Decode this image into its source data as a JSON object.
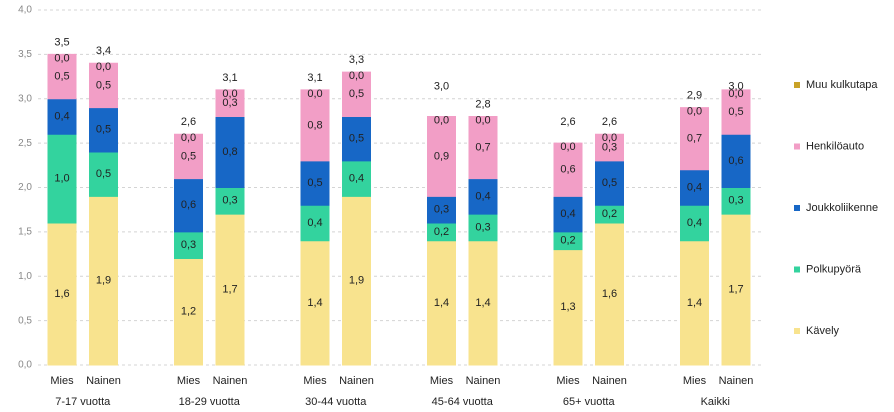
{
  "chart_data": {
    "type": "stacked-bar",
    "categories": [
      "Mies",
      "Nainen",
      "Mies",
      "Nainen",
      "Mies",
      "Nainen",
      "Mies",
      "Nainen",
      "Mies",
      "Nainen",
      "Mies",
      "Nainen"
    ],
    "groups": [
      "7-17 vuotta",
      "18-29 vuotta",
      "30-44 vuotta",
      "45-64 vuotta",
      "65+ vuotta",
      "Kaikki"
    ],
    "series": [
      {
        "name": "Kävely",
        "color": "#f8e38e",
        "values": [
          1.6,
          1.9,
          1.2,
          1.7,
          1.4,
          1.9,
          1.4,
          1.4,
          1.3,
          1.6,
          1.4,
          1.7
        ],
        "value_labels": [
          "1,6",
          "1,9",
          "1,2",
          "1,7",
          "1,4",
          "1,9",
          "1,4",
          "1,4",
          "1,3",
          "1,6",
          "1,4",
          "1,7"
        ]
      },
      {
        "name": "Polkupyörä",
        "color": "#33d39e",
        "values": [
          1.0,
          0.5,
          0.3,
          0.3,
          0.4,
          0.4,
          0.2,
          0.3,
          0.2,
          0.2,
          0.4,
          0.3
        ],
        "value_labels": [
          "1,0",
          "0,5",
          "0,3",
          "0,3",
          "0,4",
          "0,4",
          "0,2",
          "0,3",
          "0,2",
          "0,2",
          "0,4",
          "0,3"
        ]
      },
      {
        "name": "Joukkoliikenne",
        "color": "#1767c6",
        "values": [
          0.4,
          0.5,
          0.6,
          0.8,
          0.5,
          0.5,
          0.3,
          0.4,
          0.4,
          0.5,
          0.4,
          0.6
        ],
        "value_labels": [
          "0,4",
          "0,5",
          "0,6",
          "0,8",
          "0,5",
          "0,5",
          "0,3",
          "0,4",
          "0,4",
          "0,5",
          "0,4",
          "0,6"
        ]
      },
      {
        "name": "Henkilöauto",
        "color": "#f29ec6",
        "values": [
          0.5,
          0.5,
          0.5,
          0.3,
          0.8,
          0.5,
          0.9,
          0.7,
          0.6,
          0.3,
          0.7,
          0.5
        ],
        "value_labels": [
          "0,5",
          "0,5",
          "0,5",
          "0,3",
          "0,8",
          "0,5",
          "0,9",
          "0,7",
          "0,6",
          "0,3",
          "0,7",
          "0,5"
        ]
      },
      {
        "name": "Muu kulkutapa",
        "color": "#c9a227",
        "values": [
          0.0,
          0.0,
          0.0,
          0.0,
          0.0,
          0.0,
          0.0,
          0.0,
          0.0,
          0.0,
          0.0,
          0.0
        ],
        "value_labels": [
          "0,0",
          "0,0",
          "0,0",
          "0,0",
          "0,0",
          "0,0",
          "0,0",
          "0,0",
          "0,0",
          "0,0",
          "0,0",
          "0,0"
        ]
      }
    ],
    "totals": [
      3.5,
      3.4,
      2.6,
      3.1,
      3.1,
      3.3,
      3.0,
      2.8,
      2.6,
      2.6,
      2.9,
      3.0
    ],
    "total_labels": [
      "3,5",
      "3,4",
      "2,6",
      "3,1",
      "3,1",
      "3,3",
      "3,0",
      "2,8",
      "2,6",
      "2,6",
      "2,9",
      "3,0"
    ],
    "ylim": [
      0,
      4
    ],
    "yticks": [
      {
        "value": 0,
        "label": "0,0"
      },
      {
        "value": 0.5,
        "label": "0,5"
      },
      {
        "value": 1,
        "label": "1,0"
      },
      {
        "value": 1.5,
        "label": "1,5"
      },
      {
        "value": 2,
        "label": "2,0"
      },
      {
        "value": 2.5,
        "label": "2,5"
      },
      {
        "value": 3,
        "label": "3,0"
      },
      {
        "value": 3.5,
        "label": "3,5"
      },
      {
        "value": 4,
        "label": "4,0"
      }
    ],
    "grid": true,
    "legend": "right"
  }
}
